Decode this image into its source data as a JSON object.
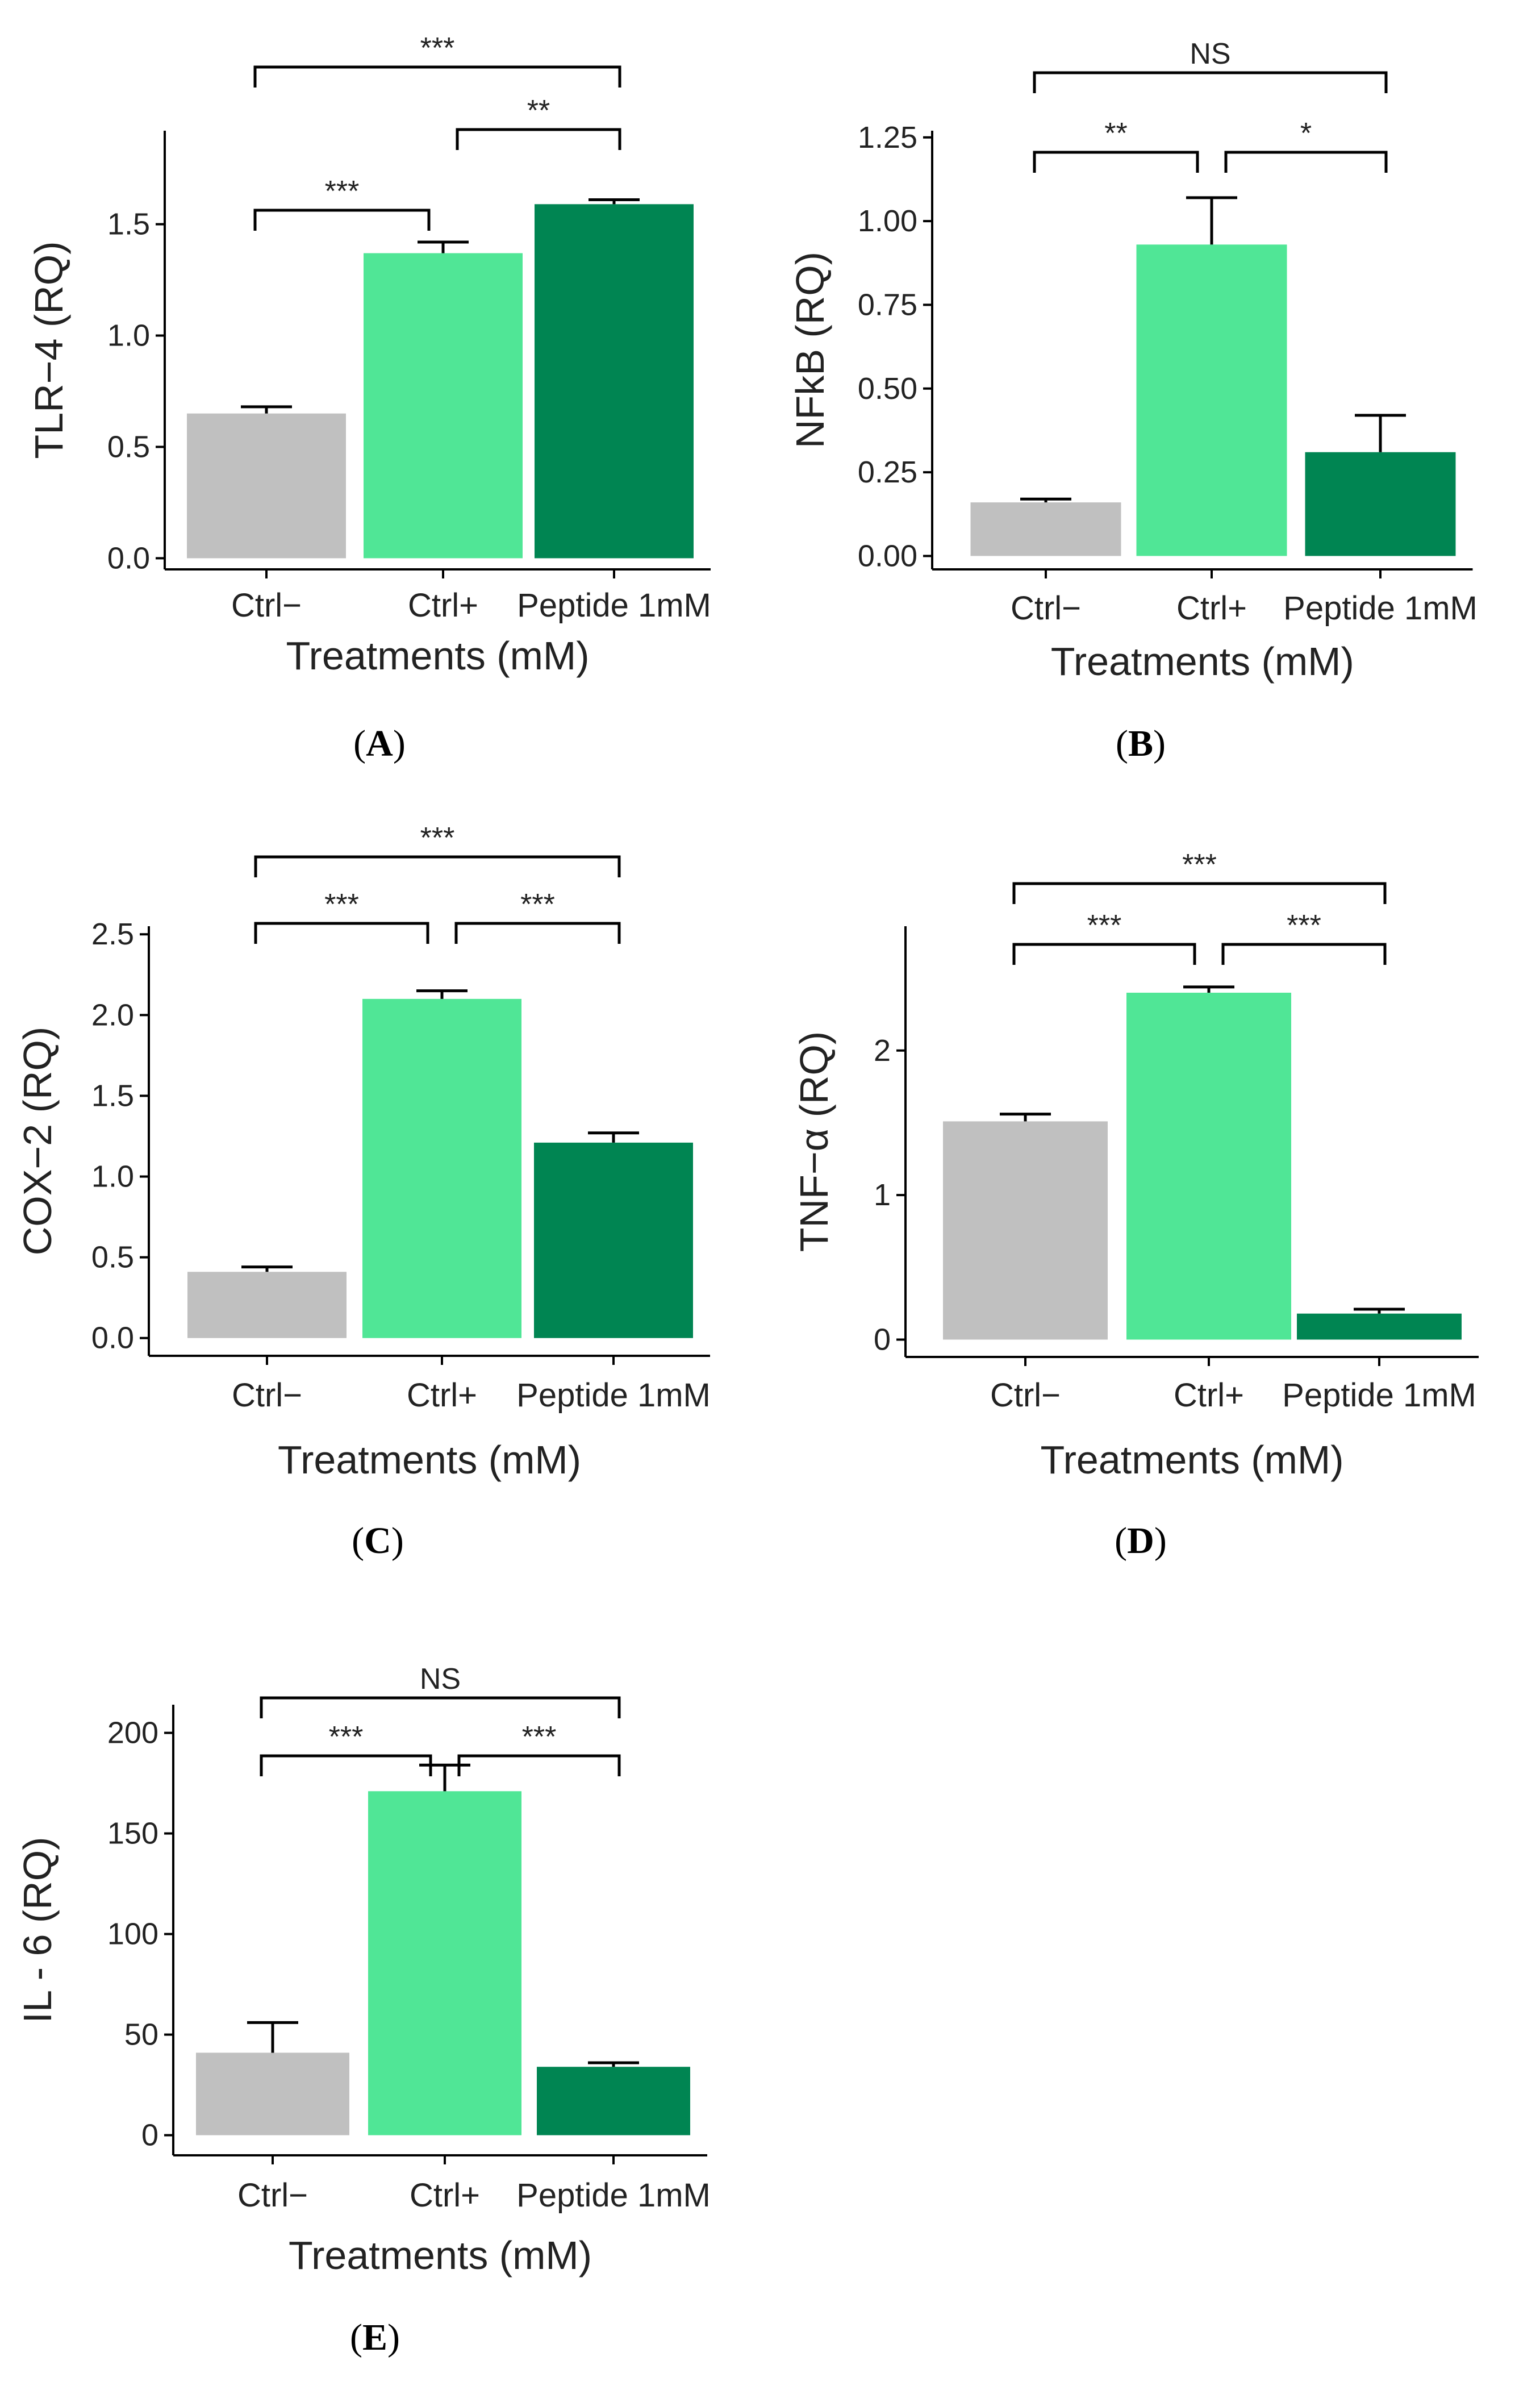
{
  "figure": {
    "colors": {
      "Ctrl−": "#c0c0c0",
      "Ctrl+": "#50e696",
      "Peptide 1mM": "#008552"
    }
  },
  "chart_data": [
    {
      "id": "A",
      "caption": "A",
      "type": "bar",
      "categories": [
        "Ctrl−",
        "Ctrl+",
        "Peptide 1mM"
      ],
      "values": [
        0.65,
        1.37,
        1.59
      ],
      "errors": [
        0.03,
        0.05,
        0.02
      ],
      "ylabel": "TLR−4 (RQ)",
      "xlabel": "Treatments (mM)",
      "yticks": [
        0.0,
        0.5,
        1.0,
        1.5
      ],
      "ytick_labels": [
        "0.0",
        "0.5",
        "1.0",
        "1.5"
      ],
      "ylim": [
        -0.05,
        1.92
      ],
      "significance": [
        {
          "from": 0,
          "to": 1,
          "label": "***"
        },
        {
          "from": 1,
          "to": 2,
          "label": "**"
        },
        {
          "from": 0,
          "to": 2,
          "label": "***"
        }
      ]
    },
    {
      "id": "B",
      "caption": "B",
      "type": "bar",
      "categories": [
        "Ctrl−",
        "Ctrl+",
        "Peptide 1mM"
      ],
      "values": [
        0.16,
        0.93,
        0.31
      ],
      "errors": [
        0.01,
        0.14,
        0.11
      ],
      "ylabel": "NFkB (RQ)",
      "xlabel": "Treatments (mM)",
      "yticks": [
        0.0,
        0.25,
        0.5,
        0.75,
        1.0,
        1.25
      ],
      "ytick_labels": [
        "0.00",
        "0.25",
        "0.50",
        "0.75",
        "1.00",
        "1.25"
      ],
      "ylim": [
        -0.04,
        1.27
      ],
      "significance": [
        {
          "from": 0,
          "to": 1,
          "label": "**"
        },
        {
          "from": 1,
          "to": 2,
          "label": "*"
        },
        {
          "from": 0,
          "to": 2,
          "label": "NS"
        }
      ]
    },
    {
      "id": "C",
      "caption": "C",
      "type": "bar",
      "categories": [
        "Ctrl−",
        "Ctrl+",
        "Peptide 1mM"
      ],
      "values": [
        0.41,
        2.1,
        1.21
      ],
      "errors": [
        0.03,
        0.05,
        0.06
      ],
      "ylabel": "COX−2 (RQ)",
      "xlabel": "Treatments (mM)",
      "yticks": [
        0.0,
        0.5,
        1.0,
        1.5,
        2.0,
        2.5
      ],
      "ytick_labels": [
        "0.0",
        "0.5",
        "1.0",
        "1.5",
        "2.0",
        "2.5"
      ],
      "ylim": [
        -0.11,
        2.55
      ],
      "significance": [
        {
          "from": 0,
          "to": 1,
          "label": "***"
        },
        {
          "from": 1,
          "to": 2,
          "label": "***"
        },
        {
          "from": 0,
          "to": 2,
          "label": "***"
        }
      ]
    },
    {
      "id": "D",
      "caption": "D",
      "type": "bar",
      "categories": [
        "Ctrl−",
        "Ctrl+",
        "Peptide 1mM"
      ],
      "values": [
        1.51,
        2.4,
        0.18
      ],
      "errors": [
        0.05,
        0.04,
        0.03
      ],
      "ylabel": "TNF−α (RQ)",
      "xlabel": "Treatments (mM)",
      "yticks": [
        0,
        1,
        2
      ],
      "ytick_labels": [
        "0",
        "1",
        "2"
      ],
      "ylim": [
        -0.12,
        2.86
      ],
      "significance": [
        {
          "from": 0,
          "to": 1,
          "label": "***"
        },
        {
          "from": 1,
          "to": 2,
          "label": "***"
        },
        {
          "from": 0,
          "to": 2,
          "label": "***"
        }
      ]
    },
    {
      "id": "E",
      "caption": "E",
      "type": "bar",
      "categories": [
        "Ctrl−",
        "Ctrl+",
        "Peptide 1mM"
      ],
      "values": [
        41,
        171,
        34
      ],
      "errors": [
        15,
        13,
        2
      ],
      "ylabel": "IL - 6 (RQ)",
      "xlabel": "Treatments (mM)",
      "yticks": [
        0,
        50,
        100,
        150,
        200
      ],
      "ytick_labels": [
        "0",
        "50",
        "100",
        "150",
        "200"
      ],
      "ylim": [
        -10,
        214
      ],
      "significance": [
        {
          "from": 0,
          "to": 1,
          "label": "***"
        },
        {
          "from": 1,
          "to": 2,
          "label": "***"
        },
        {
          "from": 0,
          "to": 2,
          "label": "NS"
        }
      ]
    }
  ]
}
